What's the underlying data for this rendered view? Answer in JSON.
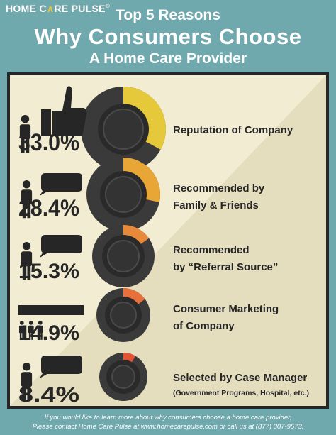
{
  "brand": {
    "name_a": "HOME C",
    "name_b": "RE PULSE",
    "trademark": "®"
  },
  "header": {
    "line1": "Top 5 Reasons",
    "line2": "Why Consumers Choose",
    "line3": "A Home Care Provider"
  },
  "chart_data": {
    "type": "pie",
    "items": [
      {
        "value": 33.0,
        "label": "33.0%",
        "text_lines": [
          "Reputation of Company"
        ],
        "subtext": "",
        "icon": "thumbs-up-icon",
        "color": "#e6c93a"
      },
      {
        "value": 28.4,
        "label": "28.4%",
        "text_lines": [
          "Recommended by",
          "Family & Friends"
        ],
        "subtext": "",
        "icon": "speech-bubble-icon",
        "color": "#e8a637"
      },
      {
        "value": 15.3,
        "label": "15.3%",
        "text_lines": [
          "Recommended",
          "by “Referral Source”"
        ],
        "subtext": "",
        "icon": "speech-bubble-icon",
        "color": "#e8893a"
      },
      {
        "value": 14.9,
        "label": "14.9%",
        "text_lines": [
          "Consumer Marketing",
          "of Company"
        ],
        "subtext": "",
        "icon": "billboard-icon",
        "color": "#e8703a"
      },
      {
        "value": 8.4,
        "label": "8.4%",
        "text_lines": [
          "Selected by Case Manager"
        ],
        "subtext": "(Government Programs, Hospital, etc.)",
        "icon": "speech-bubble-icon",
        "color": "#e35434"
      }
    ]
  },
  "footer": {
    "line1": "If you would like to learn more about why consumers choose a home care provider,",
    "line2": "Please contact Home Care Pulse at www.homecarepulse.com or call us at (877) 307-9573."
  },
  "colors": {
    "background": "#6fa8ad",
    "panel": "#f2edd2",
    "dark": "#262626",
    "ring": "#3a3a3a"
  }
}
